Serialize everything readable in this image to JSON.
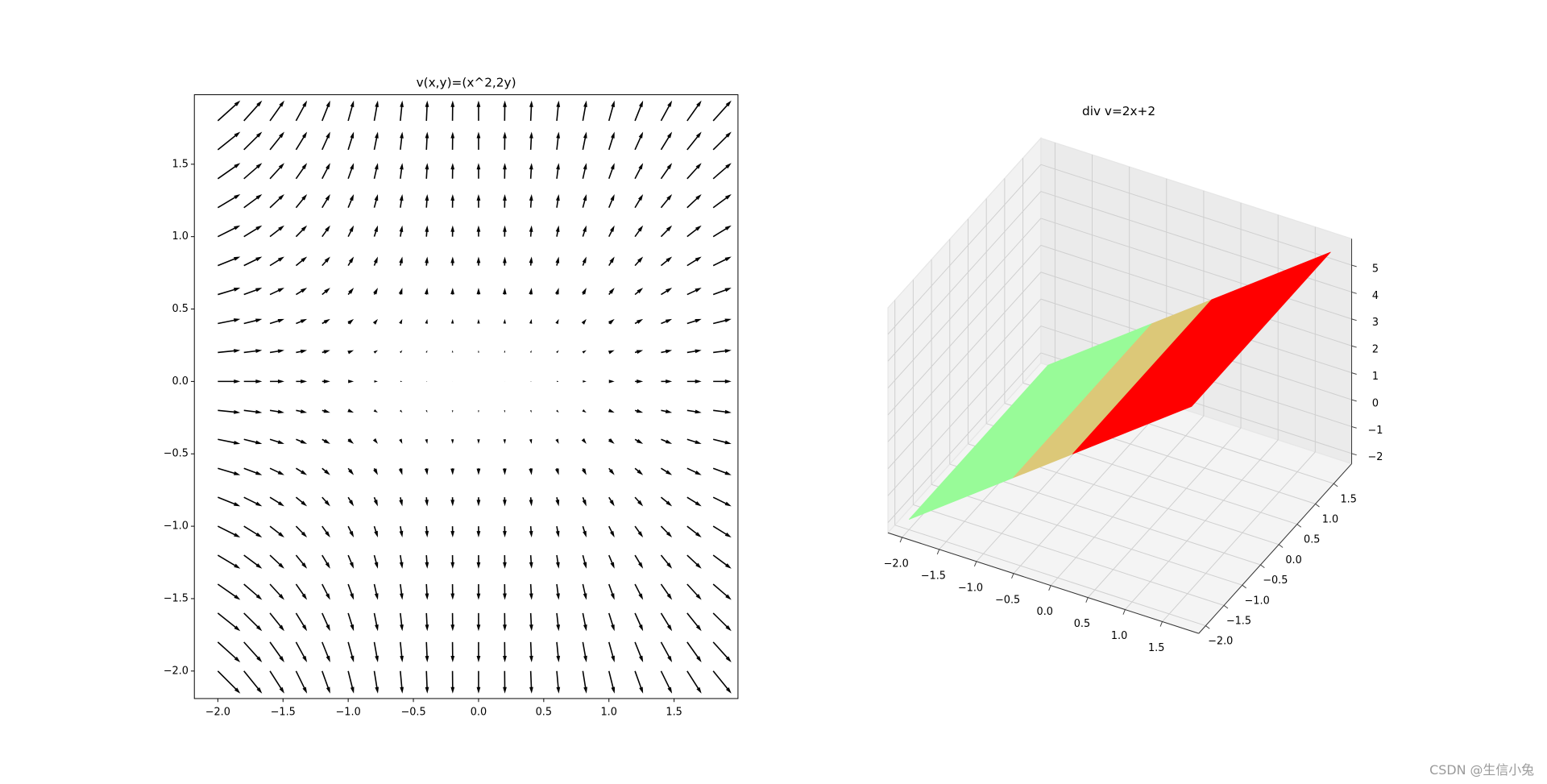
{
  "chart_data": [
    {
      "type": "quiver",
      "title": "v(x,y)=(x^2,2y)",
      "color": "#000000",
      "x": [
        -2,
        -1.8,
        -1.6,
        -1.4,
        -1.2,
        -1,
        -0.8,
        -0.6,
        -0.4,
        -0.2,
        0,
        0.2,
        0.4,
        0.6,
        0.8,
        1,
        1.2,
        1.4,
        1.6,
        1.8
      ],
      "y": [
        -2,
        -1.8,
        -1.6,
        -1.4,
        -1.2,
        -1,
        -0.8,
        -0.6,
        -0.4,
        -0.2,
        0,
        0.2,
        0.4,
        0.6,
        0.8,
        1,
        1.2,
        1.4,
        1.6,
        1.8
      ],
      "u": [
        4,
        3.24,
        2.56,
        1.96,
        1.44,
        1,
        0.64,
        0.36,
        0.16,
        0.04,
        0,
        0.04,
        0.16,
        0.36,
        0.64,
        1,
        1.44,
        1.96,
        2.56,
        3.24
      ],
      "v": [
        -4,
        -3.6,
        -3.2,
        -2.8,
        -2.4,
        -2,
        -1.6,
        -1.2,
        -0.8,
        -0.4,
        0,
        0.4,
        0.8,
        1.2,
        1.6,
        2,
        2.4,
        2.8,
        3.2,
        3.6
      ],
      "xlim": [
        -2.18,
        1.99
      ],
      "ylim": [
        -2.19,
        1.98
      ],
      "xticks": [
        {
          "value": -2,
          "label": "−2.0"
        },
        {
          "value": -1.5,
          "label": "−1.5"
        },
        {
          "value": -1,
          "label": "−1.0"
        },
        {
          "value": -0.5,
          "label": "−0.5"
        },
        {
          "value": 0,
          "label": "0.0"
        },
        0.5,
        {
          "value": 1,
          "label": "1.0"
        },
        1.5
      ],
      "yticks": [
        {
          "value": -2,
          "label": "−2.0"
        },
        {
          "value": -1.5,
          "label": "−1.5"
        },
        {
          "value": -1,
          "label": "−1.0"
        },
        {
          "value": -0.5,
          "label": "−0.5"
        },
        {
          "value": 0,
          "label": "0.0"
        },
        0.5,
        {
          "value": 1,
          "label": "1.0"
        },
        1.5
      ]
    },
    {
      "type": "surface3d",
      "title": "div v=2x+2",
      "y": [
        -2,
        1.8
      ],
      "series": [
        {
          "color": "#98fb98",
          "x": [
            -2,
            -0.6
          ],
          "z": [
            -2,
            0.8
          ]
        },
        {
          "color": "#dcc878",
          "x": [
            -0.6,
            0.2
          ],
          "z": [
            0.8,
            2.4
          ]
        },
        {
          "color": "#ff0000",
          "x": [
            0.2,
            1.8
          ],
          "z": [
            2.4,
            5.6
          ]
        }
      ],
      "xlim": [
        -2.19,
        1.99
      ],
      "ylim": [
        -2.19,
        1.99
      ],
      "zlim": [
        -2.38,
        5.98
      ],
      "xticks": [
        {
          "value": -2,
          "label": "−2.0"
        },
        {
          "value": -1.5,
          "label": "−1.5"
        },
        {
          "value": -1,
          "label": "−1.0"
        },
        {
          "value": -0.5,
          "label": "−0.5"
        },
        {
          "value": 0,
          "label": "0.0"
        },
        0.5,
        {
          "value": 1,
          "label": "1.0"
        },
        1.5
      ],
      "yticks": [
        {
          "value": -2,
          "label": "−2.0"
        },
        {
          "value": -1.5,
          "label": "−1.5"
        },
        {
          "value": -1,
          "label": "−1.0"
        },
        {
          "value": -0.5,
          "label": "−0.5"
        },
        {
          "value": 0,
          "label": "0.0"
        },
        0.5,
        {
          "value": 1,
          "label": "1.0"
        },
        1.5
      ],
      "zticks": [
        {
          "value": -2,
          "label": "−2"
        },
        {
          "value": -1,
          "label": "−1"
        },
        0,
        1,
        2,
        3,
        4,
        5
      ]
    }
  ],
  "watermark": "CSDN @生信小兔"
}
